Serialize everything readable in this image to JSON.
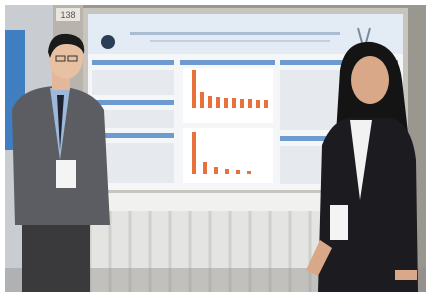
{
  "board_number": "138"
}
